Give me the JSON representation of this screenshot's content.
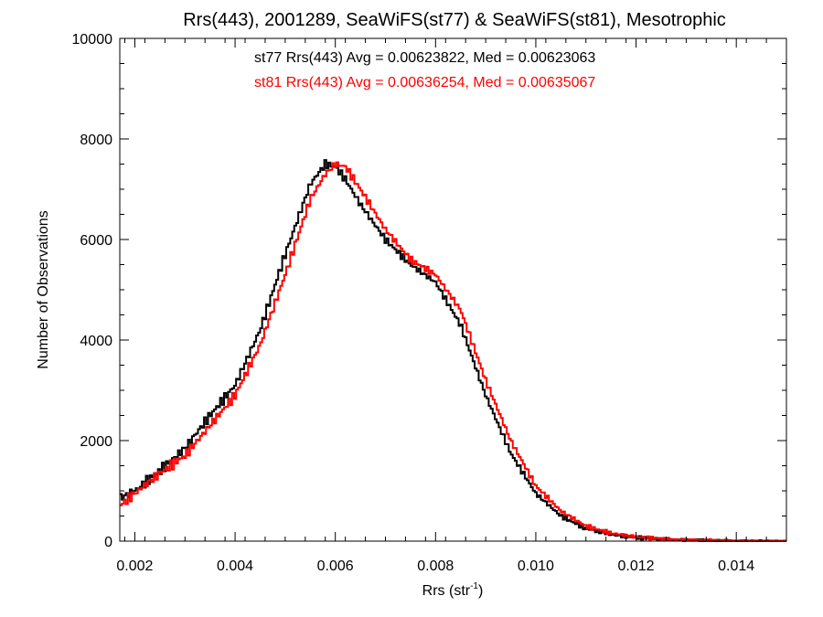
{
  "chart_data": {
    "type": "line",
    "step": true,
    "title": "Rrs(443), 2001289, SeaWiFS(st77) & SeaWiFS(st81), Mesotrophic",
    "xlabel": {
      "main": "Rrs (str",
      "sup": "-1",
      "close": ")"
    },
    "ylabel": "Number of Observations",
    "xlim": [
      0.0017,
      0.015
    ],
    "ylim": [
      0,
      10000
    ],
    "x_ticks": [
      0.002,
      0.004,
      0.006,
      0.008,
      0.01,
      0.012,
      0.014
    ],
    "x_tick_labels": [
      "0.002",
      "0.004",
      "0.006",
      "0.008",
      "0.010",
      "0.012",
      "0.014"
    ],
    "y_ticks": [
      0,
      2000,
      4000,
      6000,
      8000,
      10000
    ],
    "y_tick_labels": [
      "0",
      "2000",
      "4000",
      "6000",
      "8000",
      "10000"
    ],
    "annotations": [
      {
        "text": "st77 Rrs(443) Avg = 0.00623822, Med = 0.00623063",
        "color": "#000000"
      },
      {
        "text": "st81 Rrs(443) Avg = 0.00636254, Med = 0.00635067",
        "color": "#ff0000"
      }
    ],
    "series": [
      {
        "color": "#000000",
        "x": [
          0.0017,
          0.002,
          0.0025,
          0.003,
          0.0035,
          0.004,
          0.0045,
          0.005,
          0.0055,
          0.0058,
          0.006,
          0.0062,
          0.0065,
          0.007,
          0.0075,
          0.008,
          0.0085,
          0.009,
          0.0095,
          0.01,
          0.0105,
          0.011,
          0.0115,
          0.012,
          0.0125,
          0.013,
          0.014,
          0.015
        ],
        "y": [
          850,
          1000,
          1400,
          1850,
          2500,
          3100,
          4200,
          5700,
          7100,
          7500,
          7450,
          7200,
          6700,
          6000,
          5500,
          5150,
          4300,
          2900,
          1750,
          950,
          500,
          250,
          130,
          70,
          40,
          20,
          5,
          0
        ]
      },
      {
        "color": "#ff0000",
        "x": [
          0.0017,
          0.002,
          0.0025,
          0.003,
          0.0035,
          0.004,
          0.0045,
          0.005,
          0.0055,
          0.0058,
          0.006,
          0.0062,
          0.0065,
          0.007,
          0.0075,
          0.008,
          0.0085,
          0.009,
          0.0095,
          0.01,
          0.0105,
          0.011,
          0.0115,
          0.012,
          0.0125,
          0.013,
          0.014,
          0.015
        ],
        "y": [
          700,
          950,
          1350,
          1700,
          2300,
          2900,
          3900,
          5300,
          6800,
          7300,
          7500,
          7450,
          7000,
          6200,
          5600,
          5300,
          4600,
          3200,
          2000,
          1100,
          600,
          300,
          160,
          85,
          45,
          25,
          8,
          0
        ]
      }
    ]
  }
}
